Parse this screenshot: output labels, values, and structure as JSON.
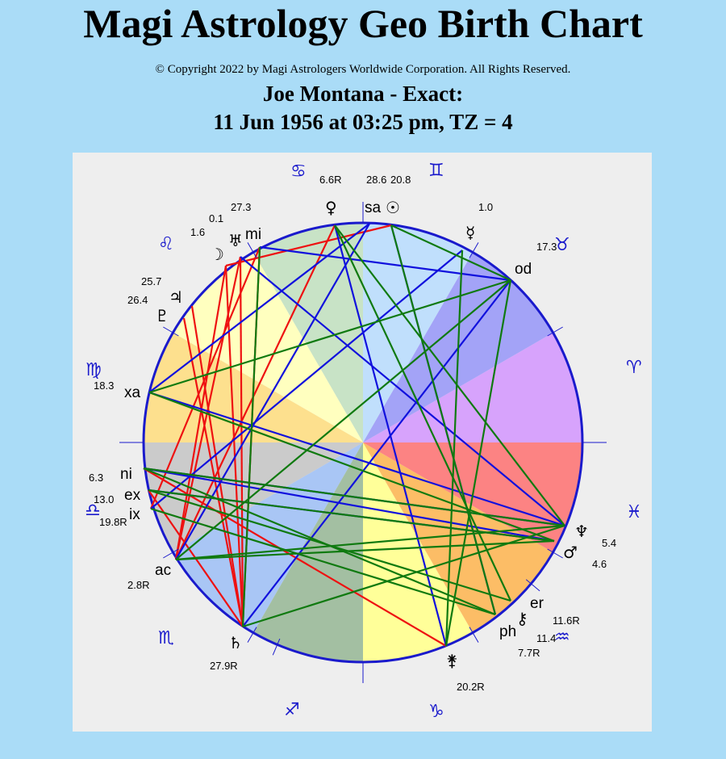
{
  "header": {
    "title": "Magi Astrology Geo Birth Chart",
    "copyright": "© Copyright 2022 by Magi Astrologers Worldwide Corporation. All Rights Reserved.",
    "subject": "Joe Montana - Exact:",
    "datetime": "11 Jun 1956 at 03:25 pm, TZ = 4"
  },
  "chart": {
    "zodiac": [
      {
        "name": "cancer",
        "glyph": "♋"
      },
      {
        "name": "gemini",
        "glyph": "♊"
      },
      {
        "name": "taurus",
        "glyph": "♉"
      },
      {
        "name": "aries",
        "glyph": "♈"
      },
      {
        "name": "pisces",
        "glyph": "♓"
      },
      {
        "name": "aquarius",
        "glyph": "♒"
      },
      {
        "name": "capricorn",
        "glyph": "♑"
      },
      {
        "name": "sagittarius",
        "glyph": "♐"
      },
      {
        "name": "scorpio",
        "glyph": "♏"
      },
      {
        "name": "libra",
        "glyph": "♎"
      },
      {
        "name": "virgo",
        "glyph": "♍"
      },
      {
        "name": "leo",
        "glyph": "♌"
      }
    ],
    "bodies": [
      {
        "name": "venus",
        "glyph": "♀",
        "degree": "6.6R"
      },
      {
        "name": "sun",
        "glyph": "☉",
        "degree": "20.8"
      },
      {
        "name": "mercury",
        "glyph": "☿",
        "degree": "1.0"
      },
      {
        "name": "neptune",
        "glyph": "♆",
        "degree": "5.4"
      },
      {
        "name": "mars",
        "glyph": "♂",
        "degree": "4.6"
      },
      {
        "name": "chiron",
        "glyph": "⚷",
        "degree": "11.6R"
      },
      {
        "name": "juno",
        "glyph": "⚵",
        "degree": "20.2R"
      },
      {
        "name": "saturn",
        "glyph": "♄",
        "degree": "27.9R"
      },
      {
        "name": "pluto",
        "glyph": "♇",
        "degree": "26.4"
      },
      {
        "name": "jupiter",
        "glyph": "♃",
        "degree": "25.7"
      },
      {
        "name": "moon",
        "glyph": "☽",
        "degree": "1.6"
      },
      {
        "name": "uranus",
        "glyph": "♅",
        "degree": "0.1"
      }
    ],
    "points": [
      {
        "name": "sa",
        "degree": "28.6"
      },
      {
        "name": "od",
        "degree": "17.3"
      },
      {
        "name": "er",
        "degree": "11.4"
      },
      {
        "name": "ph",
        "degree": "7.7R"
      },
      {
        "name": "ac",
        "degree": "2.8R"
      },
      {
        "name": "ix",
        "degree": "19.8R"
      },
      {
        "name": "ex",
        "degree": "13.0"
      },
      {
        "name": "ni",
        "degree": "6.3"
      },
      {
        "name": "xa",
        "degree": "18.3"
      },
      {
        "name": "mi",
        "degree": "27.3"
      }
    ],
    "colors": {
      "circle": "#1a1acc",
      "aspect_red": "#ee1111",
      "aspect_blue": "#1111dd",
      "aspect_green": "#107a10",
      "sectors": [
        "#c8e3c6",
        "#ffffbf",
        "#fde08e",
        "#cbcbcb",
        "#a9c6f5",
        "#a3bfa2",
        "#ffff99",
        "#fcbd66",
        "#fc8383",
        "#d7a3fc",
        "#a3a3f7",
        "#c0dffc"
      ]
    }
  }
}
